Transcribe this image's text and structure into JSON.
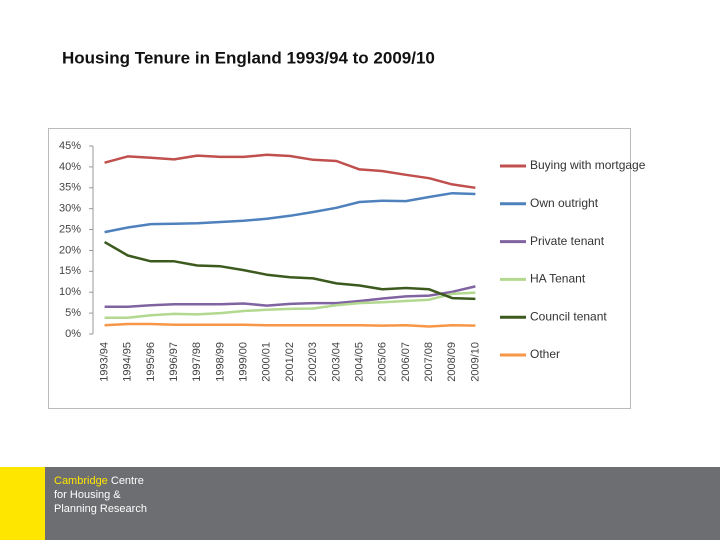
{
  "chart_data": {
    "type": "line",
    "title": "Housing Tenure in England 1993/94 to 2009/10",
    "categories": [
      "1993/94",
      "1994/95",
      "1995/96",
      "1996/97",
      "1997/98",
      "1998/99",
      "1999/00",
      "2000/01",
      "2001/02",
      "2002/03",
      "2003/04",
      "2004/05",
      "2005/06",
      "2006/07",
      "2007/08",
      "2008/09",
      "2009/10"
    ],
    "series": [
      {
        "name": "Buying with mortgage",
        "color": "#c0504d",
        "values": [
          41,
          42.5,
          42.2,
          41.8,
          42.7,
          42.4,
          42.4,
          42.9,
          42.6,
          41.7,
          41.4,
          39.4,
          39.0,
          38.1,
          37.3,
          35.8,
          35.0
        ]
      },
      {
        "name": "Own outright",
        "color": "#4f81bd",
        "values": [
          24.4,
          25.5,
          26.3,
          26.4,
          26.5,
          26.8,
          27.1,
          27.6,
          28.3,
          29.2,
          30.2,
          31.6,
          31.9,
          31.8,
          32.8,
          33.7,
          33.5
        ]
      },
      {
        "name": "Private tenant",
        "color": "#8064a2",
        "values": [
          6.5,
          6.5,
          6.9,
          7.1,
          7.1,
          7.1,
          7.3,
          6.8,
          7.2,
          7.4,
          7.4,
          7.9,
          8.5,
          9.0,
          9.2,
          10.1,
          11.4
        ]
      },
      {
        "name": "HA Tenant",
        "color": "#b3d88f",
        "values": [
          3.9,
          3.9,
          4.5,
          4.8,
          4.7,
          5.0,
          5.5,
          5.8,
          6.0,
          6.1,
          6.9,
          7.4,
          7.6,
          7.9,
          8.2,
          9.6,
          9.9
        ]
      },
      {
        "name": "Council tenant",
        "color": "#3c5a1e",
        "values": [
          22.0,
          18.8,
          17.4,
          17.4,
          16.4,
          16.2,
          15.3,
          14.2,
          13.6,
          13.3,
          12.1,
          11.6,
          10.7,
          11.0,
          10.7,
          8.6,
          8.4
        ]
      },
      {
        "name": "Other",
        "color": "#f79646",
        "values": [
          2.1,
          2.4,
          2.4,
          2.2,
          2.2,
          2.2,
          2.2,
          2.1,
          2.1,
          2.1,
          2.1,
          2.1,
          2.0,
          2.1,
          1.8,
          2.1,
          2.0
        ]
      }
    ],
    "ylim": [
      0,
      45
    ],
    "yticks": [
      {
        "value": 0,
        "label": "0%"
      },
      {
        "value": 5,
        "label": "5%"
      },
      {
        "value": 10,
        "label": "10%"
      },
      {
        "value": 15,
        "label": "15%"
      },
      {
        "value": 20,
        "label": "20%"
      },
      {
        "value": 25,
        "label": "25%"
      },
      {
        "value": 30,
        "label": "30%"
      },
      {
        "value": 35,
        "label": "35%"
      },
      {
        "value": 40,
        "label": "40%"
      },
      {
        "value": 45,
        "label": "45%"
      }
    ],
    "grid": false,
    "legend": "right"
  },
  "footer": {
    "brand": "Cambridge",
    "line1": "Centre",
    "line2": "for Housing &",
    "line3": "Planning Research"
  }
}
